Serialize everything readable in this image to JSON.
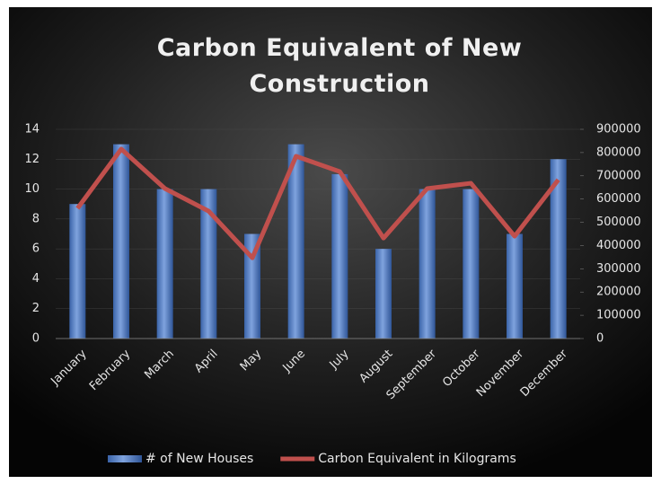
{
  "chart_data": {
    "type": "bar_line",
    "title": "Carbon Equivalent of New Construction",
    "categories": [
      "January",
      "February",
      "March",
      "April",
      "May",
      "June",
      "July",
      "August",
      "September",
      "October",
      "November",
      "December"
    ],
    "series": [
      {
        "name": "# of New Houses",
        "color": "#4f7bc4",
        "type": "bar",
        "axis": "y",
        "values": [
          9,
          13,
          10,
          10,
          7,
          13,
          11,
          6,
          10,
          10,
          7,
          12
        ]
      },
      {
        "name": "Carbon Equivalent in Kilograms",
        "color": "#c0504d",
        "type": "line",
        "axis": "y2",
        "values": [
          560000,
          815000,
          645000,
          548000,
          347000,
          784000,
          718000,
          432000,
          645000,
          668000,
          440000,
          683000
        ]
      }
    ],
    "ylim": [
      0,
      14
    ],
    "yticks": [
      0,
      2,
      4,
      6,
      8,
      10,
      12,
      14
    ],
    "y2lim": [
      0,
      900000
    ],
    "y2ticks": [
      0,
      100000,
      200000,
      300000,
      400000,
      500000,
      600000,
      700000,
      800000,
      900000
    ],
    "grid": true,
    "legend": "bottom"
  }
}
